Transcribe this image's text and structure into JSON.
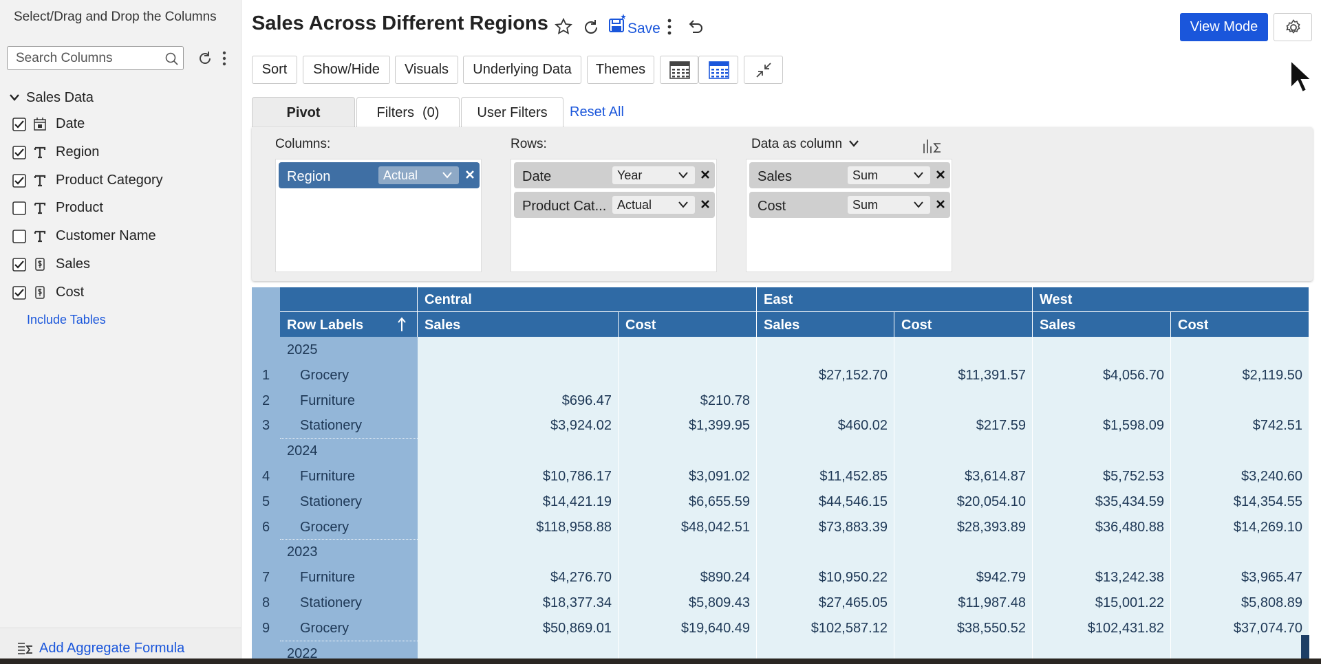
{
  "sidebar": {
    "title": "Select/Drag and Drop the Columns",
    "search_placeholder": "Search Columns",
    "group": "Sales Data",
    "fields": [
      {
        "name": "Date",
        "checked": true,
        "icon": "date"
      },
      {
        "name": "Region",
        "checked": true,
        "icon": "text"
      },
      {
        "name": "Product Category",
        "checked": true,
        "icon": "text"
      },
      {
        "name": "Product",
        "checked": false,
        "icon": "text"
      },
      {
        "name": "Customer Name",
        "checked": false,
        "icon": "text"
      },
      {
        "name": "Sales",
        "checked": true,
        "icon": "number"
      },
      {
        "name": "Cost",
        "checked": true,
        "icon": "number"
      }
    ],
    "include_tables": "Include Tables",
    "add_formula": "Add Aggregate Formula"
  },
  "header": {
    "title": "Sales Across Different Regions",
    "save": "Save",
    "view_mode": "View Mode"
  },
  "toolbar": [
    "Sort",
    "Show/Hide",
    "Visuals",
    "Underlying Data",
    "Themes"
  ],
  "tabs": [
    {
      "label": "Pivot"
    },
    {
      "label": "Filters",
      "count": "(0)"
    },
    {
      "label": "User Filters"
    }
  ],
  "reset": "Reset All",
  "config": {
    "columns_label": "Columns:",
    "columns": [
      {
        "field": "Region",
        "option": "Actual"
      }
    ],
    "rows_label": "Rows:",
    "rows": [
      {
        "field": "Date",
        "option": "Year"
      },
      {
        "field": "Product Cat...",
        "option": "Actual"
      }
    ],
    "data_label": "Data as column",
    "data": [
      {
        "field": "Sales",
        "option": "Sum"
      },
      {
        "field": "Cost",
        "option": "Sum"
      }
    ]
  },
  "table": {
    "regions": [
      "Central",
      "East",
      "West"
    ],
    "row_labels_header": "Row Labels",
    "measures": [
      "Sales",
      "Cost",
      "Sales",
      "Cost",
      "Sales",
      "Cost"
    ],
    "groups": [
      {
        "year": "2025",
        "rows": [
          {
            "index": "1",
            "label": "Grocery",
            "cells": [
              null,
              null,
              "$27,152.70",
              "$11,391.57",
              "$4,056.70",
              "$2,119.50"
            ]
          },
          {
            "index": "2",
            "label": "Furniture",
            "cells": [
              "$696.47",
              "$210.78",
              null,
              null,
              null,
              null
            ]
          },
          {
            "index": "3",
            "label": "Stationery",
            "cells": [
              "$3,924.02",
              "$1,399.95",
              "$460.02",
              "$217.59",
              "$1,598.09",
              "$742.51"
            ]
          }
        ]
      },
      {
        "year": "2024",
        "rows": [
          {
            "index": "4",
            "label": "Furniture",
            "cells": [
              "$10,786.17",
              "$3,091.02",
              "$11,452.85",
              "$3,614.87",
              "$5,752.53",
              "$3,240.60"
            ]
          },
          {
            "index": "5",
            "label": "Stationery",
            "cells": [
              "$14,421.19",
              "$6,655.59",
              "$44,546.15",
              "$20,054.10",
              "$35,434.59",
              "$14,354.55"
            ]
          },
          {
            "index": "6",
            "label": "Grocery",
            "cells": [
              "$118,958.88",
              "$48,042.51",
              "$73,883.39",
              "$28,393.89",
              "$36,480.88",
              "$14,269.10"
            ]
          }
        ]
      },
      {
        "year": "2023",
        "rows": [
          {
            "index": "7",
            "label": "Furniture",
            "cells": [
              "$4,276.70",
              "$890.24",
              "$10,950.22",
              "$942.79",
              "$13,242.38",
              "$3,965.47"
            ]
          },
          {
            "index": "8",
            "label": "Stationery",
            "cells": [
              "$18,377.34",
              "$5,809.43",
              "$27,465.05",
              "$11,987.48",
              "$15,001.22",
              "$5,808.89"
            ]
          },
          {
            "index": "9",
            "label": "Grocery",
            "cells": [
              "$50,869.01",
              "$19,640.49",
              "$102,587.12",
              "$38,550.52",
              "$102,431.82",
              "$37,074.70"
            ]
          }
        ]
      },
      {
        "year": "2022",
        "rows": []
      }
    ]
  }
}
